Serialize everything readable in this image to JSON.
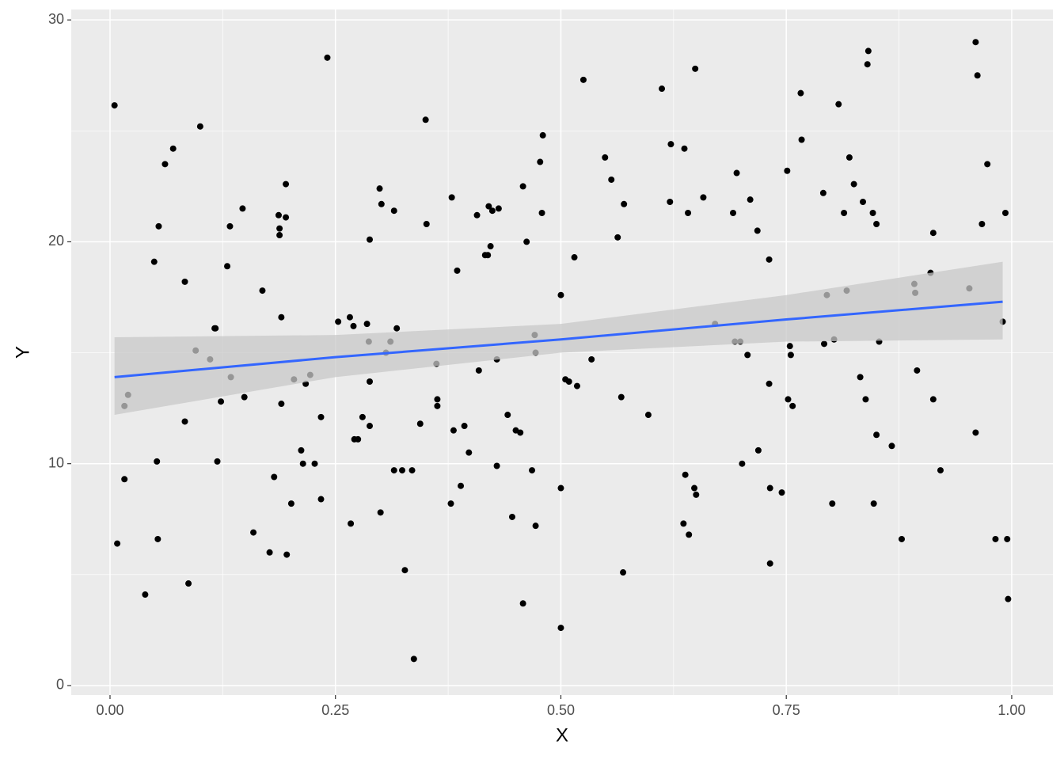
{
  "chart_data": {
    "type": "scatter",
    "x_label": "X",
    "y_label": "Y",
    "xlim": [
      -0.043,
      1.0457
    ],
    "ylim": [
      -0.43,
      30.47
    ],
    "xticks": [
      {
        "value": 0,
        "label": "0.00"
      },
      {
        "value": 0.25,
        "label": "0.25"
      },
      {
        "value": 0.5,
        "label": "0.50"
      },
      {
        "value": 0.75,
        "label": "0.75"
      },
      {
        "value": 1,
        "label": "1.00"
      }
    ],
    "yticks": [
      0,
      10,
      20,
      30
    ],
    "grid": true,
    "point_color": "#000000",
    "x": [
      0.005,
      0.008,
      0.016,
      0.02,
      0.016,
      0.039,
      0.049,
      0.054,
      0.052,
      0.053,
      0.061,
      0.07,
      0.083,
      0.083,
      0.087,
      0.095,
      0.1,
      0.111,
      0.116,
      0.117,
      0.119,
      0.123,
      0.13,
      0.133,
      0.134,
      0.147,
      0.149,
      0.159,
      0.169,
      0.177,
      0.182,
      0.187,
      0.188,
      0.188,
      0.19,
      0.19,
      0.195,
      0.195,
      0.196,
      0.201,
      0.204,
      0.212,
      0.214,
      0.217,
      0.222,
      0.227,
      0.234,
      0.234,
      0.241,
      0.253,
      0.266,
      0.267,
      0.27,
      0.271,
      0.275,
      0.28,
      0.285,
      0.287,
      0.288,
      0.288,
      0.288,
      0.299,
      0.301,
      0.3,
      0.306,
      0.311,
      0.315,
      0.318,
      0.315,
      0.324,
      0.327,
      0.335,
      0.337,
      0.344,
      0.35,
      0.351,
      0.362,
      0.363,
      0.363,
      0.378,
      0.379,
      0.381,
      0.385,
      0.389,
      0.393,
      0.398,
      0.407,
      0.409,
      0.416,
      0.419,
      0.42,
      0.422,
      0.424,
      0.429,
      0.429,
      0.431,
      0.441,
      0.446,
      0.45,
      0.455,
      0.458,
      0.458,
      0.462,
      0.468,
      0.471,
      0.472,
      0.472,
      0.477,
      0.479,
      0.48,
      0.5,
      0.5,
      0.5,
      0.505,
      0.509,
      0.515,
      0.518,
      0.525,
      0.534,
      0.549,
      0.556,
      0.563,
      0.567,
      0.569,
      0.57,
      0.597,
      0.612,
      0.621,
      0.622,
      0.637,
      0.636,
      0.638,
      0.641,
      0.642,
      0.648,
      0.649,
      0.65,
      0.658,
      0.671,
      0.691,
      0.693,
      0.695,
      0.699,
      0.701,
      0.707,
      0.71,
      0.718,
      0.719,
      0.731,
      0.731,
      0.732,
      0.732,
      0.745,
      0.751,
      0.752,
      0.754,
      0.755,
      0.757,
      0.766,
      0.767,
      0.791,
      0.792,
      0.795,
      0.801,
      0.803,
      0.808,
      0.814,
      0.817,
      0.82,
      0.825,
      0.832,
      0.835,
      0.838,
      0.84,
      0.841,
      0.846,
      0.847,
      0.85,
      0.85,
      0.853,
      0.867,
      0.878,
      0.892,
      0.893,
      0.895,
      0.91,
      0.913,
      0.913,
      0.921,
      0.953,
      0.96,
      0.96,
      0.962,
      0.967,
      0.973,
      0.982,
      0.99,
      0.993,
      0.995,
      0.996
    ],
    "values": [
      26.15,
      6.4,
      12.6,
      13.1,
      9.3,
      4.1,
      19.1,
      20.7,
      10.1,
      6.6,
      23.5,
      24.2,
      18.2,
      11.9,
      4.6,
      15.1,
      25.2,
      14.7,
      16.1,
      16.1,
      10.1,
      12.8,
      18.9,
      20.7,
      13.9,
      21.5,
      13.0,
      6.9,
      17.8,
      6.0,
      9.4,
      21.2,
      20.6,
      20.3,
      16.6,
      12.7,
      22.6,
      21.1,
      5.9,
      8.2,
      13.8,
      10.6,
      10.0,
      13.6,
      14.0,
      10.0,
      8.4,
      12.1,
      28.3,
      16.4,
      16.6,
      7.3,
      16.2,
      11.1,
      11.1,
      12.1,
      16.3,
      15.5,
      13.7,
      11.7,
      20.1,
      22.4,
      21.7,
      7.8,
      15.0,
      15.5,
      21.4,
      16.1,
      9.7,
      9.7,
      5.2,
      9.7,
      1.2,
      11.8,
      25.5,
      20.8,
      14.5,
      12.9,
      12.6,
      8.2,
      22.0,
      11.5,
      18.7,
      9.0,
      11.7,
      10.5,
      21.2,
      14.2,
      19.4,
      19.4,
      21.6,
      19.8,
      21.4,
      9.9,
      14.7,
      21.5,
      12.2,
      7.6,
      11.5,
      11.4,
      22.5,
      3.7,
      20.0,
      9.7,
      15.8,
      15.0,
      7.2,
      23.6,
      21.3,
      24.8,
      2.6,
      17.6,
      8.9,
      13.8,
      13.7,
      19.3,
      13.5,
      27.3,
      14.7,
      23.8,
      22.8,
      20.2,
      13.0,
      5.1,
      21.7,
      12.2,
      26.9,
      21.8,
      24.4,
      24.2,
      7.3,
      9.5,
      21.3,
      6.8,
      8.9,
      27.8,
      8.6,
      22.0,
      16.3,
      21.3,
      15.5,
      23.1,
      15.5,
      10.0,
      14.9,
      21.9,
      20.5,
      10.6,
      19.2,
      13.6,
      8.9,
      5.5,
      8.7,
      23.2,
      12.9,
      15.3,
      14.9,
      12.6,
      26.7,
      24.6,
      22.2,
      15.4,
      17.6,
      8.2,
      15.6,
      26.2,
      21.3,
      17.8,
      23.8,
      22.6,
      13.9,
      21.8,
      12.9,
      28.0,
      28.6,
      21.3,
      8.2,
      11.3,
      20.8,
      15.5,
      10.8,
      6.6,
      18.1,
      17.7,
      14.2,
      18.6,
      20.4,
      12.9,
      9.7,
      17.9,
      29.0,
      11.4,
      27.5,
      20.8,
      23.5,
      6.6,
      16.4,
      21.3,
      6.6,
      3.9
    ],
    "smooth": {
      "color": "#3366ff",
      "band_color": "#c8c8c8",
      "x": [
        0.005,
        0.25,
        0.5,
        0.75,
        0.99
      ],
      "fit": [
        13.9,
        14.8,
        15.6,
        16.5,
        17.3
      ],
      "lower": [
        12.2,
        13.9,
        15.0,
        15.5,
        15.6
      ],
      "upper": [
        15.7,
        15.8,
        16.3,
        17.6,
        19.1
      ]
    }
  }
}
